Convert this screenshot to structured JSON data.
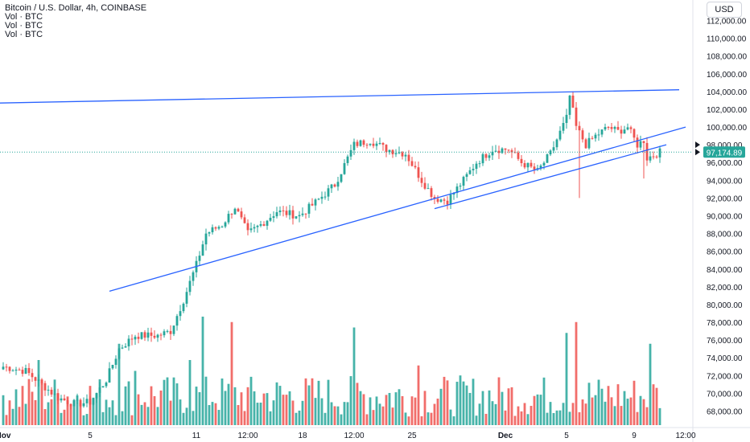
{
  "header": {
    "title": "Bitcoin / U.S. Dollar, 4h, COINBASE",
    "indicators": [
      "Vol · BTC",
      "Vol · BTC",
      "Vol · BTC"
    ],
    "currency": "USD"
  },
  "price_label": {
    "value": "97,174.89",
    "color": "#26a69a"
  },
  "colors": {
    "up": "#26a69a",
    "down": "#ef5350",
    "trendline": "#2962ff",
    "axis_text": "#131722"
  },
  "chart_data": {
    "type": "candlestick",
    "title": "Bitcoin / U.S. Dollar, 4h, COINBASE",
    "y_axis": {
      "ticks": [
        68000,
        70000,
        72000,
        74000,
        76000,
        78000,
        80000,
        82000,
        84000,
        86000,
        88000,
        90000,
        92000,
        94000,
        96000,
        98000,
        100000,
        102000,
        104000,
        106000,
        108000,
        110000,
        112000
      ],
      "tick_labels": [
        "68,000.00",
        "70,000.00",
        "72,000.00",
        "74,000.00",
        "76,000.00",
        "78,000.00",
        "80,000.00",
        "82,000.00",
        "84,000.00",
        "86,000.00",
        "88,000.00",
        "90,000.00",
        "92,000.00",
        "94,000.00",
        "96,000.00",
        "98,000.00",
        "100,000.00",
        "102,000.00",
        "104,000.00",
        "106,000.00",
        "108,000.00",
        "110,000.00",
        "112,000.00"
      ],
      "range": [
        66500,
        113500
      ]
    },
    "x_axis": {
      "tick_labels": [
        "Nov",
        "5",
        "11",
        "12:00",
        "18",
        "12:00",
        "25",
        "Dec",
        "5",
        "9",
        "12:00"
      ],
      "tick_bars": [
        0,
        27,
        60,
        76,
        93,
        109,
        127,
        156,
        175,
        196,
        212
      ]
    },
    "bar_count": 205,
    "anchors": [
      [
        0,
        73000
      ],
      [
        7,
        72500
      ],
      [
        12,
        71000
      ],
      [
        17,
        69500
      ],
      [
        22,
        68800
      ],
      [
        27,
        69000
      ],
      [
        32,
        71500
      ],
      [
        36,
        75000
      ],
      [
        41,
        76500
      ],
      [
        48,
        76500
      ],
      [
        52,
        77000
      ],
      [
        56,
        80500
      ],
      [
        60,
        84500
      ],
      [
        63,
        88000
      ],
      [
        68,
        89000
      ],
      [
        72,
        91000
      ],
      [
        76,
        88000
      ],
      [
        80,
        89000
      ],
      [
        85,
        90500
      ],
      [
        92,
        90000
      ],
      [
        97,
        91500
      ],
      [
        103,
        93500
      ],
      [
        109,
        98000
      ],
      [
        114,
        98500
      ],
      [
        119,
        97500
      ],
      [
        125,
        97000
      ],
      [
        130,
        94000
      ],
      [
        134,
        92000
      ],
      [
        138,
        91700
      ],
      [
        143,
        94000
      ],
      [
        147,
        96000
      ],
      [
        152,
        97500
      ],
      [
        157,
        97500
      ],
      [
        161,
        96000
      ],
      [
        166,
        95000
      ],
      [
        170,
        97000
      ],
      [
        175,
        101000
      ],
      [
        176,
        103500
      ],
      [
        178,
        100000
      ],
      [
        181,
        98000
      ],
      [
        184,
        99000
      ],
      [
        188,
        100000
      ],
      [
        191,
        99500
      ],
      [
        194,
        100000
      ],
      [
        197,
        98000
      ],
      [
        199,
        98500
      ],
      [
        200,
        96500
      ],
      [
        204,
        97175
      ]
    ],
    "spikes": [
      {
        "bar": 179,
        "low": 92000
      },
      {
        "bar": 199,
        "low": 94200
      }
    ],
    "volume_spikes": [
      [
        11,
        0.6
      ],
      [
        36,
        0.75
      ],
      [
        41,
        0.5
      ],
      [
        58,
        0.6
      ],
      [
        62,
        1.0
      ],
      [
        71,
        0.95
      ],
      [
        109,
        0.9
      ],
      [
        129,
        0.55
      ],
      [
        175,
        0.85
      ],
      [
        178,
        0.95
      ],
      [
        201,
        0.75
      ]
    ],
    "trendlines": [
      {
        "name": "resistance",
        "from": {
          "bar": -2,
          "price": 102700
        },
        "to": {
          "bar": 210,
          "price": 104200
        }
      },
      {
        "name": "support-long",
        "from": {
          "bar": 33,
          "price": 81500
        },
        "to": {
          "bar": 212,
          "price": 100000
        }
      },
      {
        "name": "support-short",
        "from": {
          "bar": 134,
          "price": 90800
        },
        "to": {
          "bar": 206,
          "price": 98000
        }
      }
    ]
  }
}
